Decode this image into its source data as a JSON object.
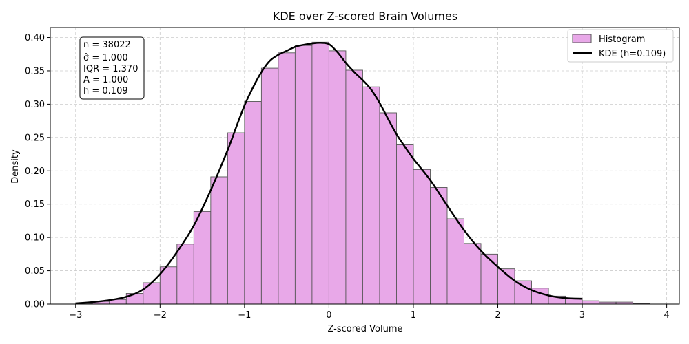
{
  "chart_data": {
    "type": "bar",
    "title": "KDE over Z-scored Brain Volumes",
    "xlabel": "Z-scored Volume",
    "ylabel": "Density",
    "xlim": [
      -3.3,
      4.15
    ],
    "ylim": [
      0,
      0.415
    ],
    "xticks": [
      -3,
      -2,
      -1,
      0,
      1,
      2,
      3,
      4
    ],
    "xtick_labels": [
      "−3",
      "−2",
      "−1",
      "0",
      "1",
      "2",
      "3",
      "4"
    ],
    "yticks": [
      0.0,
      0.05,
      0.1,
      0.15,
      0.2,
      0.25,
      0.3,
      0.35,
      0.4
    ],
    "ytick_labels": [
      "0.00",
      "0.05",
      "0.10",
      "0.15",
      "0.20",
      "0.25",
      "0.30",
      "0.35",
      "0.40"
    ],
    "grid": true,
    "legend_position": "top-right",
    "bin_width": 0.2,
    "histogram": {
      "name": "Histogram",
      "color": "#e8a8e8",
      "edge_color": "#555555",
      "bin_starts": [
        -3.0,
        -2.8,
        -2.6,
        -2.4,
        -2.2,
        -2.0,
        -1.8,
        -1.6,
        -1.4,
        -1.2,
        -1.0,
        -0.8,
        -0.6,
        -0.4,
        -0.2,
        0.0,
        0.2,
        0.4,
        0.6,
        0.8,
        1.0,
        1.2,
        1.4,
        1.6,
        1.8,
        2.0,
        2.2,
        2.4,
        2.6,
        2.8,
        3.0,
        3.2,
        3.4,
        3.6
      ],
      "values": [
        0.001,
        0.004,
        0.007,
        0.016,
        0.032,
        0.056,
        0.09,
        0.139,
        0.191,
        0.257,
        0.304,
        0.354,
        0.377,
        0.388,
        0.393,
        0.38,
        0.351,
        0.326,
        0.287,
        0.239,
        0.202,
        0.175,
        0.128,
        0.091,
        0.075,
        0.053,
        0.035,
        0.024,
        0.012,
        0.009,
        0.005,
        0.003,
        0.003,
        0.001
      ]
    },
    "kde": {
      "name": "KDE (h=0.109)",
      "color": "#000000",
      "x": [
        -3.0,
        -2.8,
        -2.6,
        -2.4,
        -2.2,
        -2.0,
        -1.8,
        -1.6,
        -1.4,
        -1.2,
        -1.1,
        -1.0,
        -0.9,
        -0.8,
        -0.7,
        -0.6,
        -0.5,
        -0.4,
        -0.3,
        -0.2,
        -0.1,
        0.0,
        0.1,
        0.2,
        0.3,
        0.4,
        0.5,
        0.6,
        0.7,
        0.8,
        0.9,
        1.0,
        1.2,
        1.4,
        1.6,
        1.8,
        2.0,
        2.2,
        2.4,
        2.6,
        2.8,
        3.0
      ],
      "y": [
        0.001,
        0.003,
        0.006,
        0.011,
        0.022,
        0.045,
        0.078,
        0.118,
        0.171,
        0.231,
        0.265,
        0.298,
        0.325,
        0.348,
        0.365,
        0.374,
        0.38,
        0.386,
        0.389,
        0.391,
        0.392,
        0.39,
        0.378,
        0.362,
        0.348,
        0.336,
        0.322,
        0.302,
        0.278,
        0.255,
        0.236,
        0.218,
        0.186,
        0.148,
        0.111,
        0.08,
        0.056,
        0.035,
        0.021,
        0.013,
        0.009,
        0.008
      ]
    },
    "stats_box": [
      "n = 38022",
      "σ̂ = 1.000",
      "IQR = 1.370",
      "A = 1.000",
      "h = 0.109"
    ]
  }
}
